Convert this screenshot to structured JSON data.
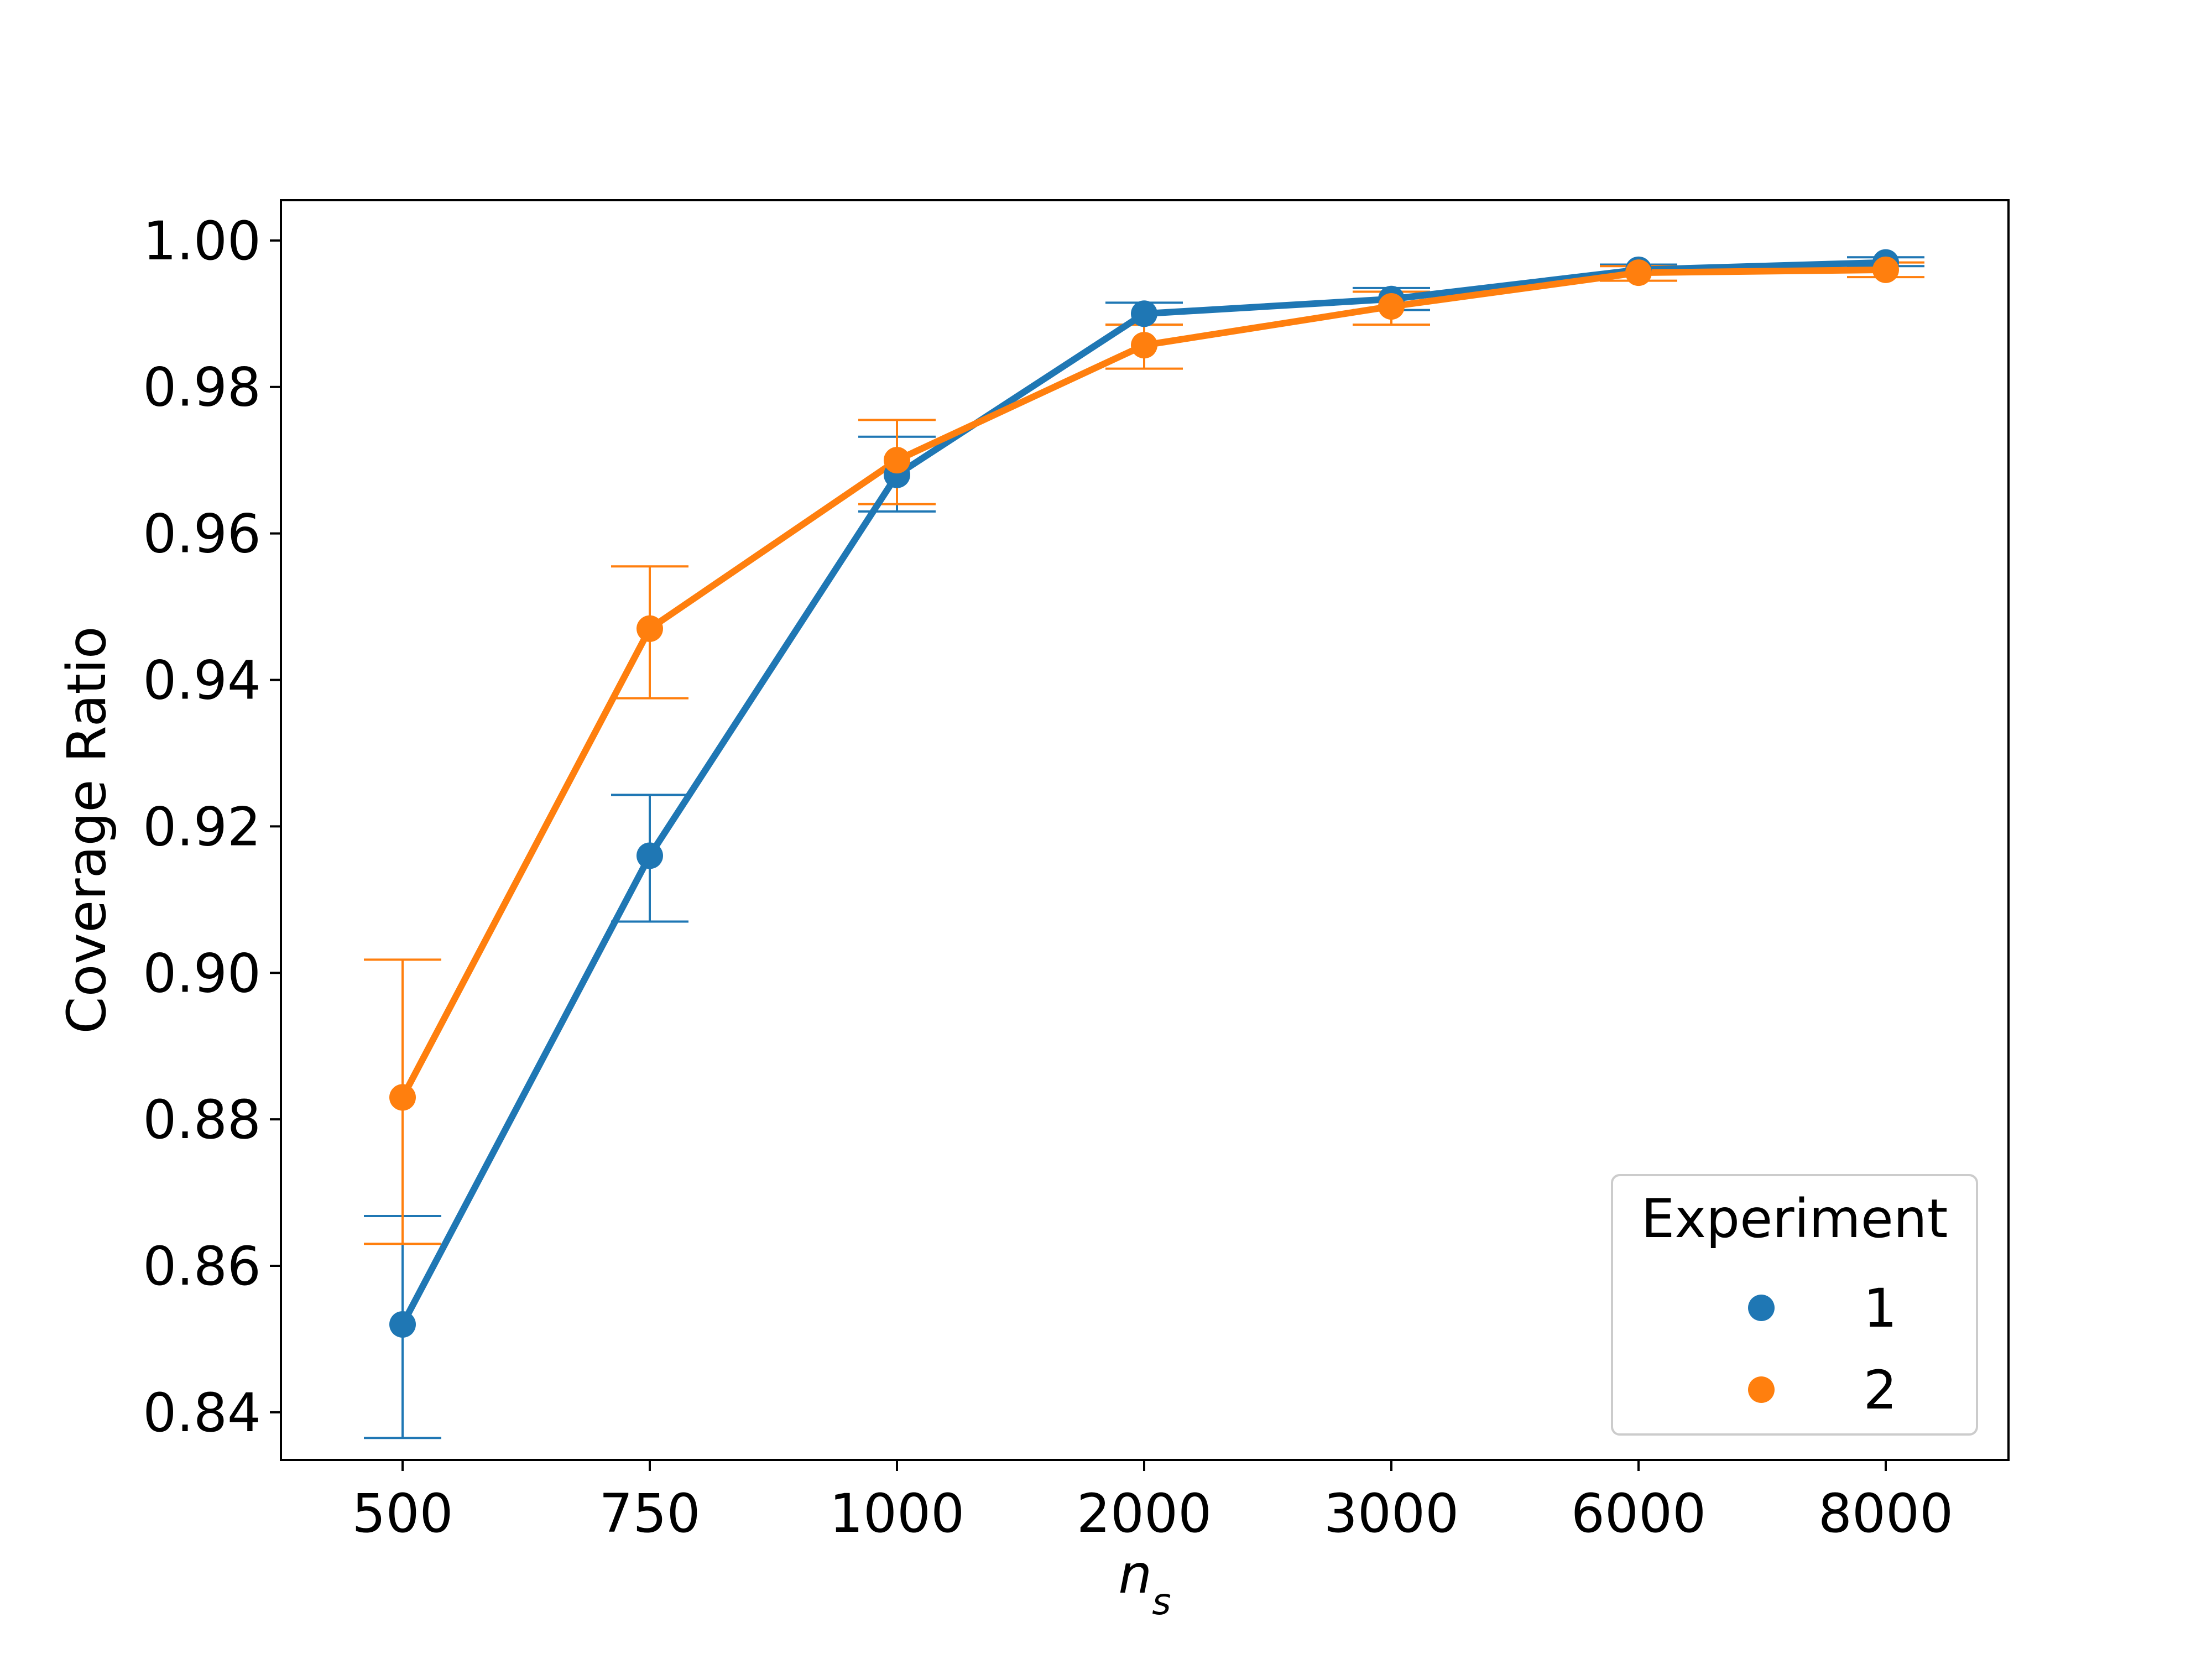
{
  "chart_data": {
    "type": "line",
    "title": "",
    "xlabel": "n",
    "xlabel_subscript": "s",
    "ylabel": "Coverage Ratio",
    "categories": [
      "500",
      "750",
      "1000",
      "2000",
      "3000",
      "6000",
      "8000"
    ],
    "ylim": [
      0.8335,
      1.0055
    ],
    "yticks": [
      "0.84",
      "0.86",
      "0.88",
      "0.90",
      "0.92",
      "0.94",
      "0.96",
      "0.98",
      "1.00"
    ],
    "grid": false,
    "legend": {
      "title": "Experiment",
      "placement": "bottom-right"
    },
    "series": [
      {
        "name": "1",
        "color": "#1f77b4",
        "values": [
          0.852,
          0.916,
          0.968,
          0.99,
          0.992,
          0.996,
          0.997
        ],
        "err_low": [
          0.8365,
          0.907,
          0.963,
          0.9885,
          0.9905,
          0.9955,
          0.9965
        ],
        "err_high": [
          0.8668,
          0.9243,
          0.9732,
          0.9915,
          0.9935,
          0.9967,
          0.9977
        ]
      },
      {
        "name": "2",
        "color": "#ff7f0e",
        "values": [
          0.883,
          0.947,
          0.97,
          0.9857,
          0.991,
          0.9956,
          0.996
        ],
        "err_low": [
          0.863,
          0.9375,
          0.964,
          0.9825,
          0.9885,
          0.9945,
          0.995
        ],
        "err_high": [
          0.9018,
          0.9555,
          0.9755,
          0.9885,
          0.993,
          0.9965,
          0.997
        ]
      }
    ]
  }
}
